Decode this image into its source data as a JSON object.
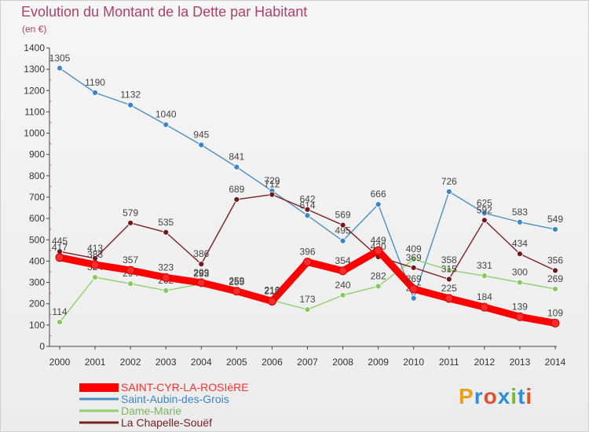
{
  "header": {
    "title": "Evolution du Montant de la Dette par Habitant",
    "unit": "(en €)"
  },
  "logo": {
    "text": "Proxiti",
    "colors": [
      "#e8a21a",
      "#2e8fd6",
      "#e0502a",
      "#2e8fd6",
      "#7ab82e",
      "#2e8fd6",
      "#e0502a"
    ]
  },
  "chart_data": {
    "type": "line",
    "title": "Evolution du Montant de la Dette par Habitant",
    "subtitle": "(en €)",
    "xlabel": "",
    "ylabel": "",
    "ylim": [
      0,
      1400
    ],
    "yticks": [
      0,
      100,
      200,
      300,
      400,
      500,
      600,
      700,
      800,
      900,
      1000,
      1100,
      1200,
      1300,
      1400
    ],
    "grid": false,
    "legend_position": "bottom-left",
    "x": [
      2000,
      2001,
      2002,
      2003,
      2004,
      2005,
      2006,
      2007,
      2008,
      2009,
      2010,
      2011,
      2012,
      2013,
      2014
    ],
    "series": [
      {
        "name": "Saint-Aubin-des-Grois",
        "color": "#4a90c8",
        "marker": "#3a86c8",
        "values": [
          1305,
          1190,
          1132,
          1040,
          945,
          841,
          729,
          614,
          495,
          666,
          226,
          726,
          625,
          583,
          549
        ],
        "labels": [
          "1305",
          "1190",
          "1132",
          "1040",
          "945",
          "841",
          "729",
          "614",
          "495",
          "666",
          "226",
          "726",
          "625",
          "583",
          "549"
        ]
      },
      {
        "name": "Dame-Marie",
        "color": "#8fd16a",
        "marker": "#86c95c",
        "values": [
          114,
          324,
          294,
          262,
          293,
          255,
          216,
          173,
          240,
          282,
          409,
          358,
          331,
          300,
          269
        ],
        "labels": [
          "114",
          "324",
          "294",
          "262",
          "293",
          "255",
          "216",
          "173",
          "240",
          "282",
          "409",
          "358",
          "331",
          "300",
          "269"
        ]
      },
      {
        "name": "La Chapelle-Souëf",
        "color": "#7a2020",
        "marker": "#6e1a1a",
        "values": [
          445,
          413,
          579,
          535,
          386,
          689,
          712,
          642,
          569,
          420,
          369,
          315,
          592,
          434,
          356
        ],
        "labels": [
          "445",
          "413",
          "579",
          "535",
          "386",
          "689",
          "712",
          "642",
          "569",
          "420",
          "369",
          "315",
          "592",
          "434",
          "356"
        ]
      },
      {
        "name": "SAINT-CYR-LA-ROSIèRE",
        "color": "#ff0000",
        "marker": "#ff2a2a",
        "values": [
          417,
          383,
          357,
          323,
          299,
          259,
          212,
          396,
          354,
          449,
          269,
          225,
          184,
          139,
          109
        ],
        "labels": [
          "417",
          "383",
          "357",
          "323",
          "299",
          "259",
          "212",
          "396",
          "354",
          "449",
          "269",
          "225",
          "184",
          "139",
          "109"
        ]
      }
    ],
    "legend": [
      {
        "name": "SAINT-CYR-LA-ROSIèRE",
        "color": "#ff0000",
        "text_color": "#ff3030",
        "thick": true
      },
      {
        "name": "Saint-Aubin-des-Grois",
        "color": "#4a90c8",
        "text_color": "#3a86c8",
        "thick": false
      },
      {
        "name": "Dame-Marie",
        "color": "#8fd16a",
        "text_color": "#7ab85a",
        "thick": false
      },
      {
        "name": "La Chapelle-Souëf",
        "color": "#7a2020",
        "text_color": "#7a2020",
        "thick": false
      }
    ]
  }
}
